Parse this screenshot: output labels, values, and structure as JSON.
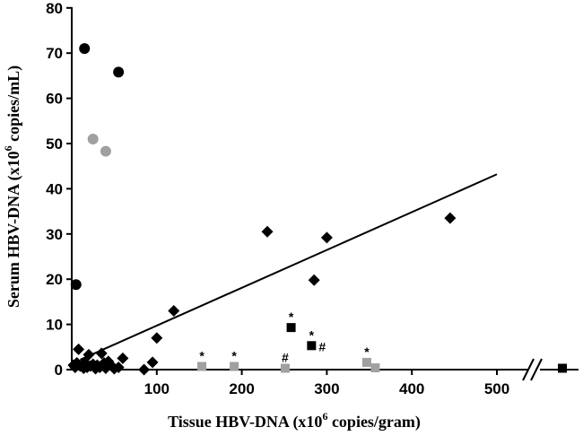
{
  "chart_data": {
    "type": "scatter",
    "xlabel_main": "Tissue HBV-DNA (x10",
    "xlabel_sup": "6",
    "xlabel_tail": " copies/gram)",
    "ylabel_main": "Serum HBV-DNA (x10",
    "ylabel_sup": "6",
    "ylabel_tail": " copies/mL)",
    "xlim": [
      0,
      500
    ],
    "ylim": [
      0,
      80
    ],
    "x_ticks": [
      "100",
      "200",
      "300",
      "400",
      "500"
    ],
    "y_ticks": [
      "0",
      "10",
      "20",
      "30",
      "40",
      "50",
      "60",
      "70",
      "80"
    ],
    "x_axis_break": true,
    "colors": {
      "black": "#000000",
      "gray": "#a0a0a0"
    },
    "series": [
      {
        "marker": "diamond",
        "color": "black",
        "points": [
          [
            2,
            1.0
          ],
          [
            4,
            0.5
          ],
          [
            6,
            1.5
          ],
          [
            8,
            4.5
          ],
          [
            10,
            0.8
          ],
          [
            12,
            1.2
          ],
          [
            14,
            0.3
          ],
          [
            16,
            1.5
          ],
          [
            18,
            0.5
          ],
          [
            20,
            3.3
          ],
          [
            22,
            0.8
          ],
          [
            25,
            1.2
          ],
          [
            28,
            0.2
          ],
          [
            30,
            1.0
          ],
          [
            33,
            0.5
          ],
          [
            35,
            3.6
          ],
          [
            38,
            1.5
          ],
          [
            40,
            0.3
          ],
          [
            43,
            1.8
          ],
          [
            47,
            0.8
          ],
          [
            50,
            0.2
          ],
          [
            55,
            0.5
          ],
          [
            60,
            2.5
          ],
          [
            85,
            0
          ],
          [
            95,
            1.6
          ],
          [
            100,
            7.0
          ],
          [
            120,
            13.0
          ],
          [
            230,
            30.5
          ],
          [
            285,
            19.8
          ],
          [
            300,
            29.2
          ],
          [
            445,
            33.5
          ]
        ]
      },
      {
        "marker": "circle",
        "color": "black",
        "points": [
          [
            5,
            18.8
          ],
          [
            15,
            71
          ],
          [
            55,
            65.8
          ]
        ]
      },
      {
        "marker": "circle",
        "color": "gray",
        "points": [
          [
            25,
            51
          ],
          [
            40,
            48.3
          ]
        ]
      },
      {
        "marker": "square",
        "color": "black",
        "points": [
          {
            "x": 258,
            "y": 9.3,
            "label": "*"
          },
          {
            "x": 282,
            "y": 5.3,
            "label": "*#"
          }
        ]
      },
      {
        "marker": "square",
        "color": "gray",
        "points": [
          {
            "x": 153,
            "y": 0.7,
            "label": "*"
          },
          {
            "x": 191,
            "y": 0.7,
            "label": "*"
          },
          {
            "x": 251,
            "y": 0.3,
            "label": "#"
          },
          {
            "x": 347,
            "y": 1.6,
            "label": "*"
          },
          {
            "x": 357,
            "y": 0.4,
            "label": ""
          }
        ]
      },
      {
        "marker": "square",
        "color": "black",
        "beyond_break": true,
        "points": [
          {
            "x": 580,
            "y": 0.3,
            "label": ""
          }
        ]
      }
    ],
    "trendline": {
      "from": [
        10,
        2.2
      ],
      "to": [
        500,
        43.2
      ]
    }
  }
}
